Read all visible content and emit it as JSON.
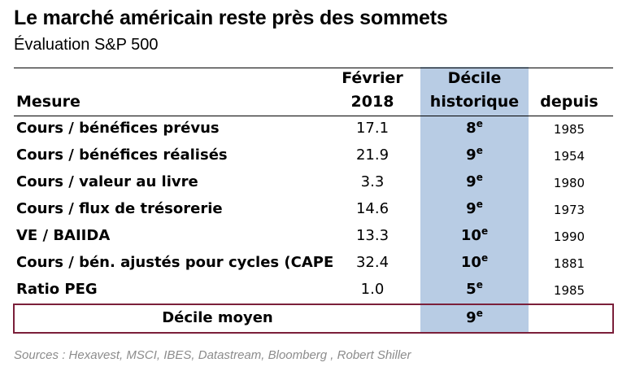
{
  "title": "Le marché américain reste près des sommets",
  "subtitle": "Évaluation S&P 500",
  "headers": {
    "measure": "Mesure",
    "value_line1": "Février",
    "value_line2": "2018",
    "decile_line1": "Décile",
    "decile_line2": "historique",
    "since": "depuis"
  },
  "rows": [
    {
      "label": "Cours / bénéfices prévus",
      "value": "17.1",
      "decile": "8",
      "suffix": "e",
      "since": "1985"
    },
    {
      "label": "Cours / bénéfices réalisés",
      "value": "21.9",
      "decile": "9",
      "suffix": "e",
      "since": "1954"
    },
    {
      "label": "Cours / valeur au livre",
      "value": "3.3",
      "decile": "9",
      "suffix": "e",
      "since": "1980"
    },
    {
      "label": "Cours / flux de trésorerie",
      "value": "14.6",
      "decile": "9",
      "suffix": "e",
      "since": "1973"
    },
    {
      "label": "VE / BAIIDA",
      "value": "13.3",
      "decile": "10",
      "suffix": "e",
      "since": "1990"
    },
    {
      "label": "Cours / bén. ajustés pour cycles (CAPE",
      "value": "32.4",
      "decile": "10",
      "suffix": "e",
      "since": "1881"
    },
    {
      "label": "Ratio PEG",
      "value": "1.0",
      "decile": "5",
      "suffix": "e",
      "since": "1985"
    }
  ],
  "average": {
    "label": "Décile moyen",
    "decile": "9",
    "suffix": "e"
  },
  "sources": "Sources : Hexavest, MSCI, IBES, Datastream, Bloomberg , Robert Shiller",
  "colors": {
    "band": "#b8cce4",
    "box_border": "#7b1f3a",
    "sources": "#8c8c8c"
  }
}
